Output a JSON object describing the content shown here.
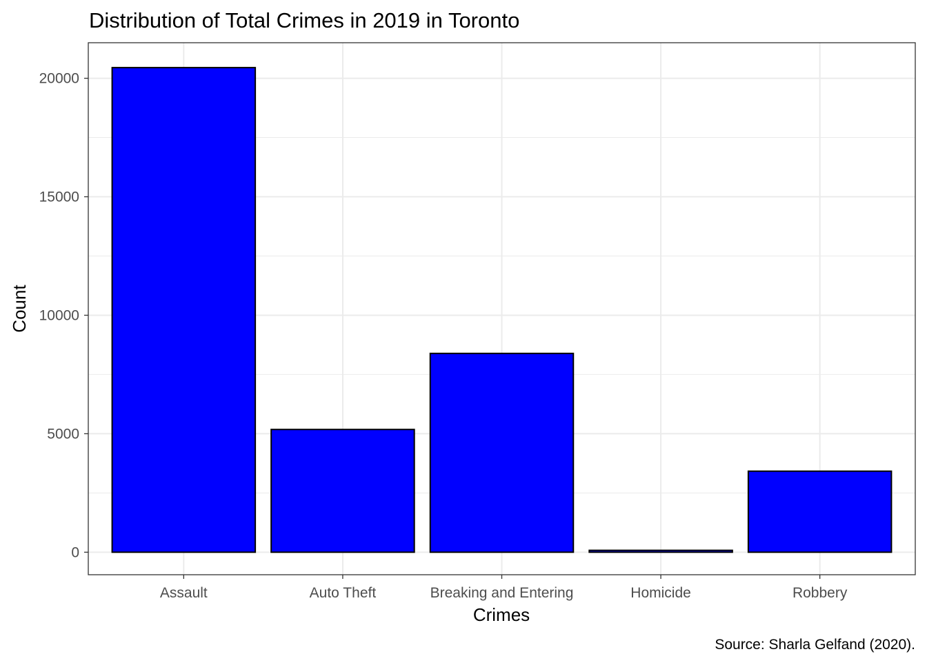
{
  "chart_data": {
    "type": "bar",
    "title": "Distribution of Total Crimes in 2019 in Toronto",
    "xlabel": "Crimes",
    "ylabel": "Count",
    "caption": "Source: Sharla Gelfand (2020).",
    "categories": [
      "Assault",
      "Auto Theft",
      "Breaking and Entering",
      "Homicide",
      "Robbery"
    ],
    "values": [
      20450,
      5180,
      8390,
      80,
      3420
    ],
    "ylim": [
      -950,
      21500
    ],
    "yticks": [
      0,
      5000,
      10000,
      15000,
      20000
    ],
    "ytick_labels": [
      "0",
      "5000",
      "10000",
      "15000",
      "20000"
    ],
    "grid": true,
    "bar_color": "#0000FF",
    "bar_border_color": "#000000",
    "grid_color": "#EBEBEB",
    "panel_border_color": "#333333"
  }
}
